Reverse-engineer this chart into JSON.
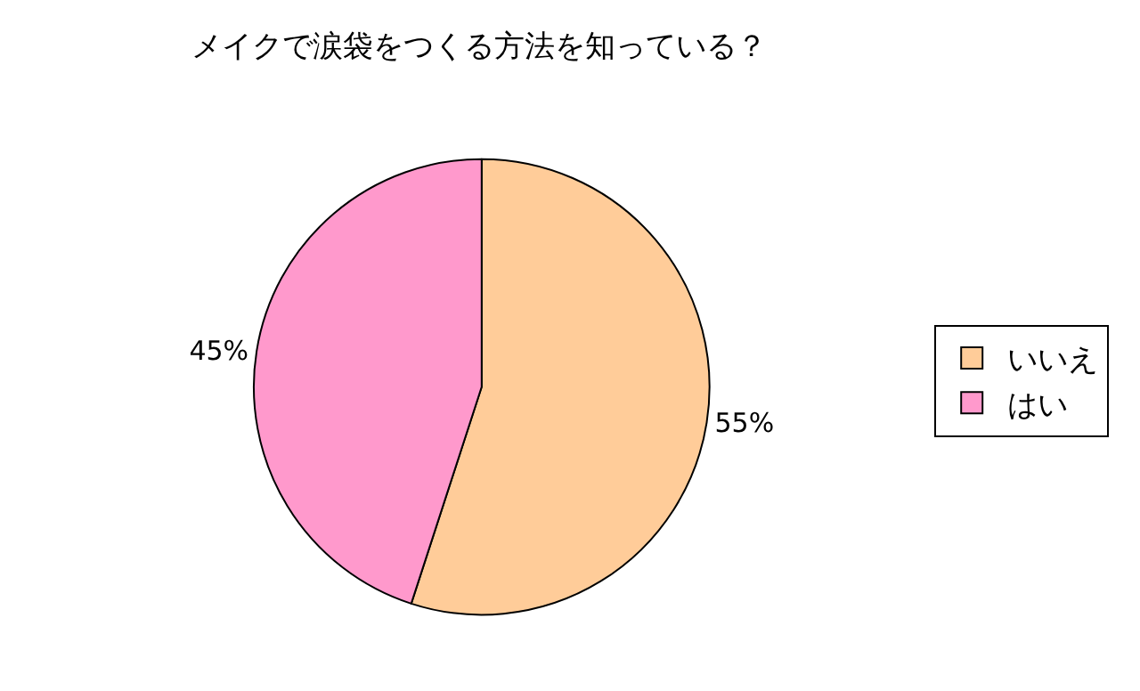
{
  "chart_data": {
    "type": "pie",
    "title": "メイクで涙袋をつくる方法を知っている？",
    "categories": [
      "いいえ",
      "はい"
    ],
    "values": [
      55,
      45
    ],
    "value_labels": [
      "55%",
      "45%"
    ],
    "colors": [
      "#ffcc99",
      "#ff99cc"
    ],
    "legend": "right"
  }
}
